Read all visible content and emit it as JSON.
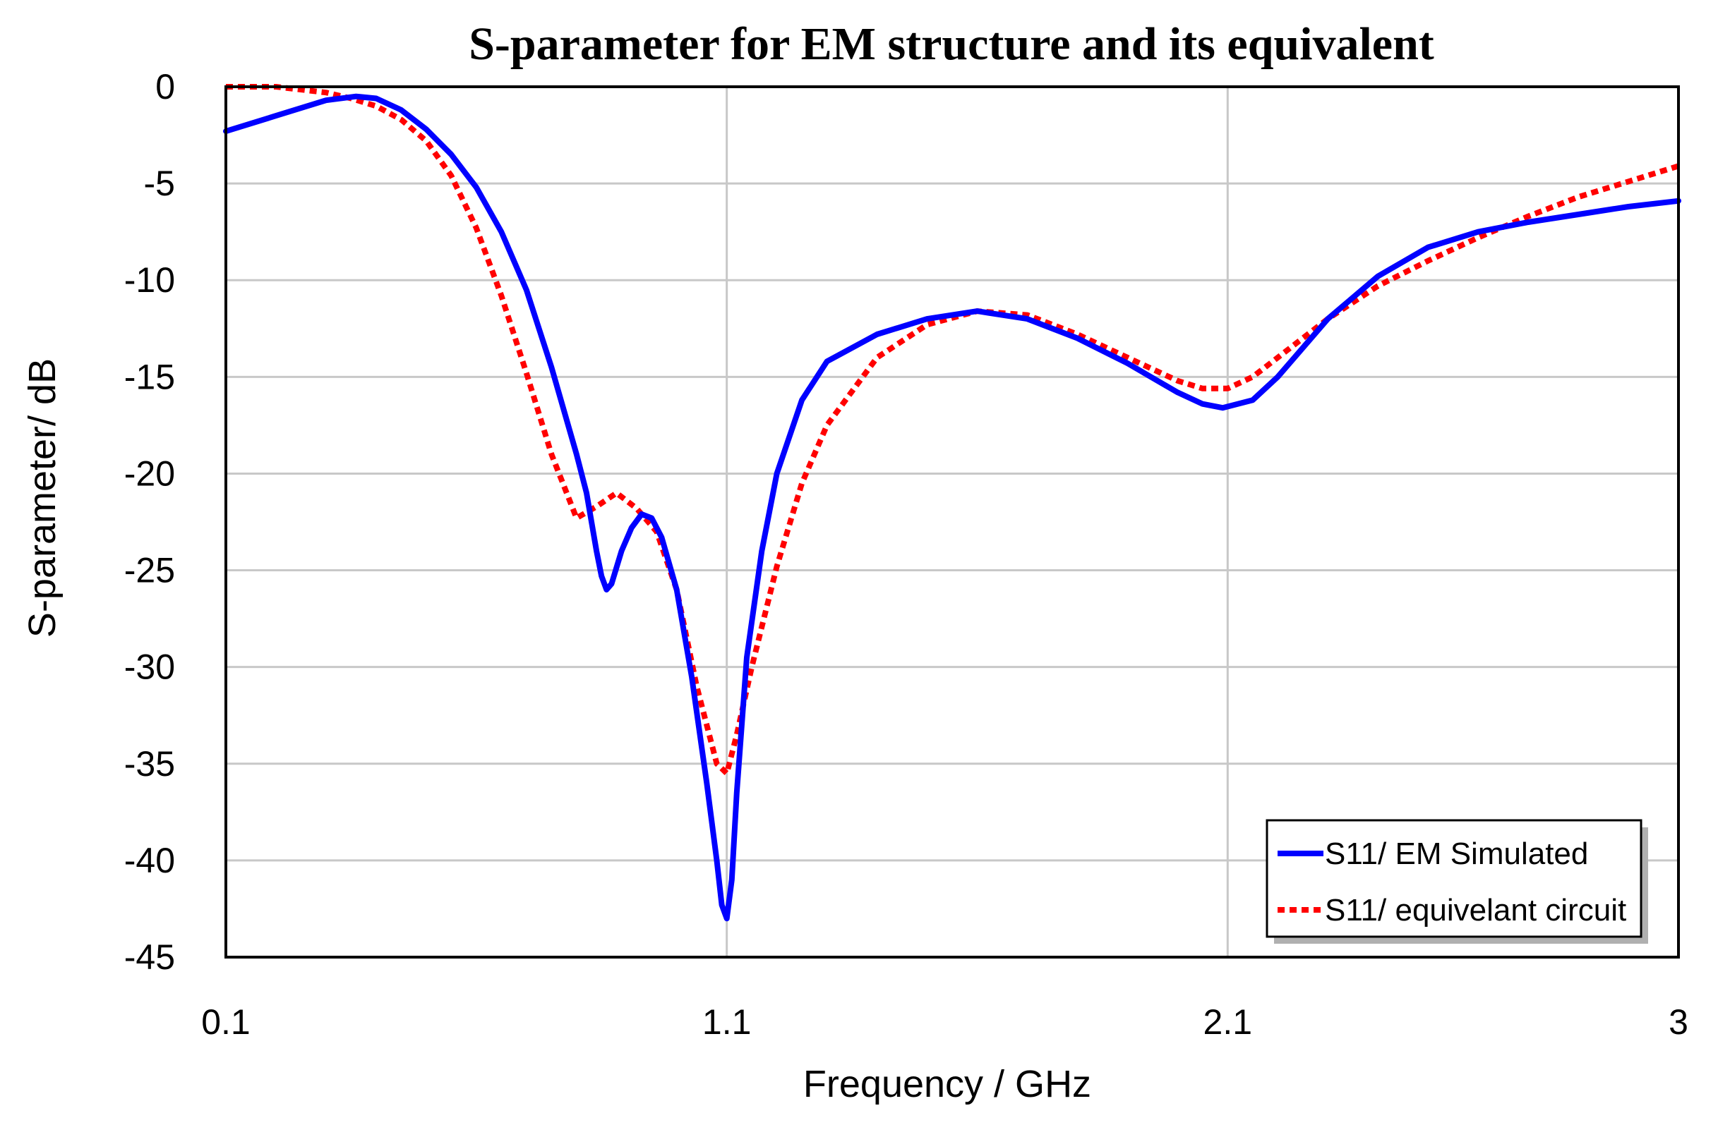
{
  "chart_data": {
    "type": "line",
    "title": "S-parameter for EM structure and its equivalent",
    "xlabel": "Frequency / GHz",
    "ylabel": "S-parameter/ dB",
    "xlim": [
      0.1,
      3
    ],
    "ylim": [
      -45,
      0
    ],
    "xticks": [
      0.1,
      1.1,
      2.1,
      3
    ],
    "xtick_labels": [
      "0.1",
      "1.1",
      "2.1",
      "3"
    ],
    "yticks": [
      0,
      -5,
      -10,
      -15,
      -20,
      -25,
      -30,
      -35,
      -40,
      -45
    ],
    "ytick_labels": [
      "0",
      "-5",
      "-10",
      "-15",
      "-20",
      "-25",
      "-30",
      "-35",
      "-40",
      "-45"
    ],
    "grid": true,
    "legend_position": "bottom-right",
    "series": [
      {
        "name": "S11/ EM Simulated",
        "color": "#0000ff",
        "style": "solid",
        "points": [
          [
            0.1,
            -2.3
          ],
          [
            0.2,
            -1.5
          ],
          [
            0.3,
            -0.7
          ],
          [
            0.36,
            -0.5
          ],
          [
            0.4,
            -0.6
          ],
          [
            0.45,
            -1.2
          ],
          [
            0.5,
            -2.2
          ],
          [
            0.55,
            -3.5
          ],
          [
            0.6,
            -5.2
          ],
          [
            0.65,
            -7.5
          ],
          [
            0.7,
            -10.5
          ],
          [
            0.75,
            -14.5
          ],
          [
            0.8,
            -19.0
          ],
          [
            0.82,
            -21.0
          ],
          [
            0.84,
            -24.0
          ],
          [
            0.85,
            -25.3
          ],
          [
            0.86,
            -26.0
          ],
          [
            0.87,
            -25.7
          ],
          [
            0.89,
            -24.0
          ],
          [
            0.91,
            -22.8
          ],
          [
            0.93,
            -22.1
          ],
          [
            0.95,
            -22.3
          ],
          [
            0.97,
            -23.3
          ],
          [
            1.0,
            -26.0
          ],
          [
            1.03,
            -30.5
          ],
          [
            1.06,
            -36.0
          ],
          [
            1.08,
            -40.0
          ],
          [
            1.09,
            -42.3
          ],
          [
            1.1,
            -43.0
          ],
          [
            1.11,
            -41.0
          ],
          [
            1.12,
            -36.5
          ],
          [
            1.14,
            -29.5
          ],
          [
            1.17,
            -24.0
          ],
          [
            1.2,
            -20.0
          ],
          [
            1.25,
            -16.2
          ],
          [
            1.3,
            -14.2
          ],
          [
            1.4,
            -12.8
          ],
          [
            1.5,
            -12.0
          ],
          [
            1.6,
            -11.6
          ],
          [
            1.7,
            -12.0
          ],
          [
            1.8,
            -13.0
          ],
          [
            1.9,
            -14.3
          ],
          [
            2.0,
            -15.8
          ],
          [
            2.05,
            -16.4
          ],
          [
            2.09,
            -16.6
          ],
          [
            2.15,
            -16.2
          ],
          [
            2.2,
            -15.0
          ],
          [
            2.3,
            -12.0
          ],
          [
            2.4,
            -9.8
          ],
          [
            2.5,
            -8.3
          ],
          [
            2.6,
            -7.5
          ],
          [
            2.7,
            -7.0
          ],
          [
            2.8,
            -6.6
          ],
          [
            2.9,
            -6.2
          ],
          [
            3.0,
            -5.9
          ]
        ]
      },
      {
        "name": "S11/ equivelant circuit",
        "color": "#ff0000",
        "style": "dotted",
        "points": [
          [
            0.1,
            0.0
          ],
          [
            0.2,
            0.0
          ],
          [
            0.3,
            -0.3
          ],
          [
            0.35,
            -0.6
          ],
          [
            0.4,
            -1.0
          ],
          [
            0.45,
            -1.7
          ],
          [
            0.5,
            -2.8
          ],
          [
            0.55,
            -4.6
          ],
          [
            0.6,
            -7.3
          ],
          [
            0.65,
            -10.8
          ],
          [
            0.7,
            -14.8
          ],
          [
            0.75,
            -19.0
          ],
          [
            0.8,
            -22.3
          ],
          [
            0.84,
            -21.7
          ],
          [
            0.88,
            -21.0
          ],
          [
            0.92,
            -21.8
          ],
          [
            0.96,
            -23.0
          ],
          [
            1.0,
            -26.0
          ],
          [
            1.04,
            -31.0
          ],
          [
            1.08,
            -35.0
          ],
          [
            1.1,
            -35.5
          ],
          [
            1.12,
            -33.5
          ],
          [
            1.15,
            -30.0
          ],
          [
            1.2,
            -24.8
          ],
          [
            1.25,
            -20.5
          ],
          [
            1.3,
            -17.5
          ],
          [
            1.4,
            -14.0
          ],
          [
            1.5,
            -12.3
          ],
          [
            1.6,
            -11.6
          ],
          [
            1.7,
            -11.8
          ],
          [
            1.8,
            -12.8
          ],
          [
            1.9,
            -14.0
          ],
          [
            2.0,
            -15.2
          ],
          [
            2.05,
            -15.6
          ],
          [
            2.1,
            -15.6
          ],
          [
            2.15,
            -15.0
          ],
          [
            2.2,
            -14.0
          ],
          [
            2.3,
            -12.0
          ],
          [
            2.4,
            -10.3
          ],
          [
            2.5,
            -9.0
          ],
          [
            2.6,
            -7.8
          ],
          [
            2.7,
            -6.7
          ],
          [
            2.8,
            -5.7
          ],
          [
            2.9,
            -4.9
          ],
          [
            3.0,
            -4.1
          ]
        ]
      }
    ]
  }
}
